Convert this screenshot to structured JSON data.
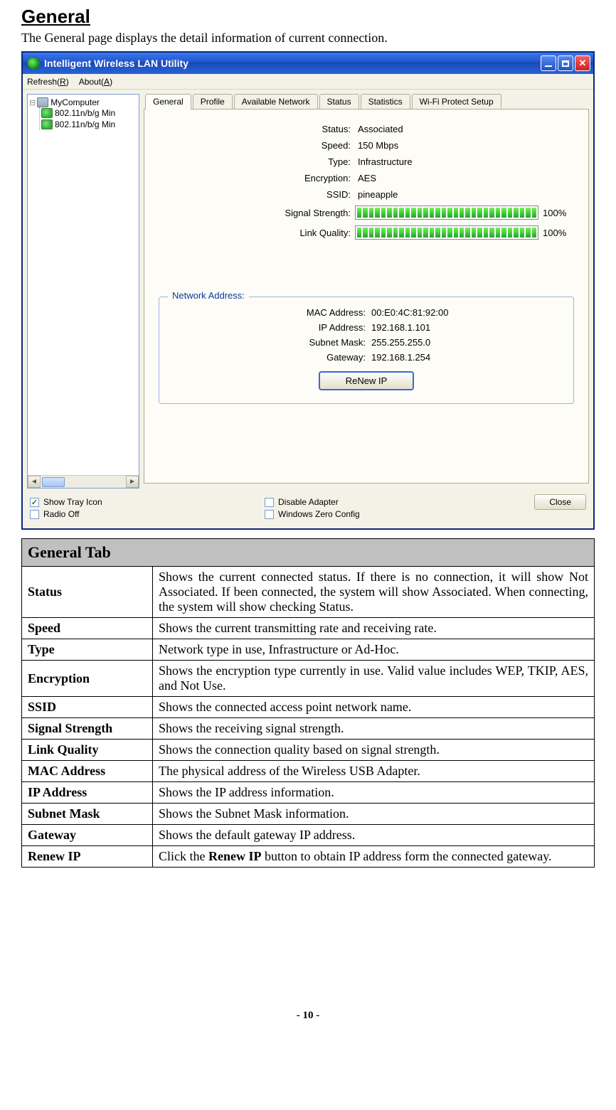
{
  "heading": "General",
  "intro": "The General page displays the detail information of current connection.",
  "titlebar": {
    "title": "Intelligent Wireless LAN Utility"
  },
  "menubar": {
    "refresh": {
      "key": "R",
      "label": "Refresh(R)"
    },
    "about": {
      "key": "A",
      "label": "About(A)"
    }
  },
  "tree": {
    "root": "MyComputer",
    "children": [
      "802.11n/b/g Min",
      "802.11n/b/g Min"
    ]
  },
  "tabs": [
    "General",
    "Profile",
    "Available Network",
    "Status",
    "Statistics",
    "Wi-Fi Protect Setup"
  ],
  "active_tab_index": 0,
  "status_fields": {
    "Status": "Associated",
    "Speed": "150 Mbps",
    "Type": "Infrastructure",
    "Encryption": "AES",
    "SSID": "pineapple"
  },
  "meters": {
    "signal_strength": {
      "label": "Signal Strength:",
      "percent": "100%",
      "segments": 30
    },
    "link_quality": {
      "label": "Link Quality:",
      "percent": "100%",
      "segments": 30
    }
  },
  "network_address": {
    "legend": "Network Address:",
    "MAC Address:": "00:E0:4C:81:92:00",
    "IP Address:": "192.168.1.101",
    "Subnet Mask:": "255.255.255.0",
    "Gateway:": "192.168.1.254"
  },
  "buttons": {
    "renew_ip": "ReNew IP",
    "close": "Close"
  },
  "checkboxes": {
    "show_tray_icon": {
      "label": "Show Tray Icon",
      "checked": true
    },
    "radio_off": {
      "label": "Radio Off",
      "checked": false
    },
    "disable_adapter": {
      "label": "Disable Adapter",
      "checked": false
    },
    "windows_zero": {
      "label": "Windows Zero Config",
      "checked": false
    }
  },
  "desc_table": {
    "header": "General Tab",
    "rows": [
      {
        "k": "Status",
        "v": "Shows the current connected status. If there is no connection, it will show Not Associated. If been connected, the system will show Associated. When connecting, the system will show checking Status."
      },
      {
        "k": "Speed",
        "v": "Shows the current transmitting rate and receiving rate."
      },
      {
        "k": "Type",
        "v": "Network type in use, Infrastructure or Ad-Hoc."
      },
      {
        "k": "Encryption",
        "v": "Shows the encryption type currently in use. Valid value includes WEP, TKIP, AES, and Not Use."
      },
      {
        "k": "SSID",
        "v": "Shows the connected access point network name."
      },
      {
        "k": "Signal Strength",
        "v": "Shows the receiving signal strength."
      },
      {
        "k": "Link Quality",
        "v": "Shows the connection quality based on signal strength."
      },
      {
        "k": "MAC Address",
        "v": "The physical address of the Wireless USB Adapter."
      },
      {
        "k": "IP Address",
        "v": "Shows the IP address information."
      },
      {
        "k": "Subnet Mask",
        "v": "Shows the Subnet Mask information."
      },
      {
        "k": "Gateway",
        "v": "Shows the default gateway IP address."
      },
      {
        "k": "Renew IP",
        "v_html": "Click the <b>Renew IP</b> button to obtain IP address form the connected gateway."
      }
    ]
  },
  "page_number": "- 10 -",
  "colors": {
    "titlebar_grad_top": "#3a78f0",
    "titlebar_grad_bottom": "#2864d8",
    "close_btn": "#d02020",
    "meter_green": "#3ec83a",
    "groupbox_border": "#9ab5e4",
    "groupbox_legend": "#0a3a9a",
    "desc_header_bg": "#c0c0c0"
  }
}
